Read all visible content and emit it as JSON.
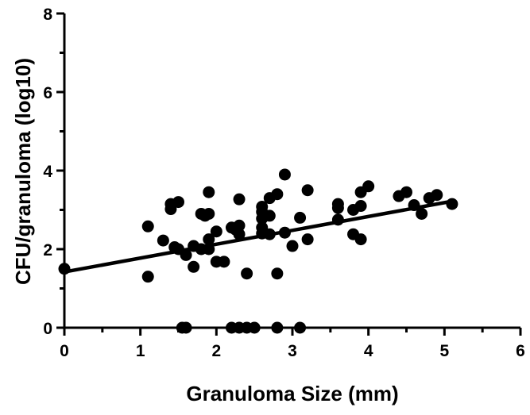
{
  "chart_data": {
    "type": "scatter",
    "xlabel": "Granuloma Size (mm)",
    "ylabel": "CFU/granuloma (log10)",
    "xlim": [
      0,
      6
    ],
    "ylim": [
      0,
      8
    ],
    "xticks": [
      0,
      1,
      2,
      3,
      4,
      5,
      6
    ],
    "yticks": [
      0,
      2,
      4,
      6,
      8
    ],
    "grid": false,
    "legend": "none",
    "points": [
      [
        0.0,
        1.5
      ],
      [
        1.1,
        2.58
      ],
      [
        1.1,
        1.3
      ],
      [
        1.3,
        2.22
      ],
      [
        1.4,
        3.15
      ],
      [
        1.4,
        3.02
      ],
      [
        1.45,
        2.05
      ],
      [
        1.5,
        3.2
      ],
      [
        1.5,
        2.0
      ],
      [
        1.55,
        0.0
      ],
      [
        1.6,
        1.85
      ],
      [
        1.6,
        0.0
      ],
      [
        1.7,
        2.08
      ],
      [
        1.7,
        1.55
      ],
      [
        1.8,
        2.9
      ],
      [
        1.8,
        2.0
      ],
      [
        1.85,
        2.85
      ],
      [
        1.9,
        3.45
      ],
      [
        1.9,
        2.9
      ],
      [
        1.9,
        2.25
      ],
      [
        1.9,
        2.0
      ],
      [
        2.0,
        2.45
      ],
      [
        2.0,
        1.68
      ],
      [
        2.1,
        1.68
      ],
      [
        2.2,
        2.55
      ],
      [
        2.2,
        0.0
      ],
      [
        2.25,
        2.5
      ],
      [
        2.3,
        3.27
      ],
      [
        2.3,
        2.6
      ],
      [
        2.3,
        2.38
      ],
      [
        2.3,
        0.0
      ],
      [
        2.4,
        1.38
      ],
      [
        2.4,
        0.0
      ],
      [
        2.5,
        0.0
      ],
      [
        2.6,
        3.08
      ],
      [
        2.6,
        2.95
      ],
      [
        2.6,
        2.78
      ],
      [
        2.6,
        2.55
      ],
      [
        2.6,
        2.4
      ],
      [
        2.7,
        3.3
      ],
      [
        2.7,
        2.85
      ],
      [
        2.7,
        2.38
      ],
      [
        2.8,
        3.4
      ],
      [
        2.8,
        1.38
      ],
      [
        2.8,
        0.0
      ],
      [
        2.9,
        3.9
      ],
      [
        2.9,
        2.42
      ],
      [
        3.0,
        2.08
      ],
      [
        3.1,
        2.8
      ],
      [
        3.1,
        0.0
      ],
      [
        3.2,
        3.5
      ],
      [
        3.2,
        2.25
      ],
      [
        3.6,
        3.15
      ],
      [
        3.6,
        3.05
      ],
      [
        3.6,
        2.75
      ],
      [
        3.8,
        3.0
      ],
      [
        3.8,
        2.38
      ],
      [
        3.9,
        3.45
      ],
      [
        3.9,
        3.1
      ],
      [
        3.9,
        2.25
      ],
      [
        4.0,
        3.6
      ],
      [
        4.4,
        3.35
      ],
      [
        4.5,
        3.45
      ],
      [
        4.6,
        3.12
      ],
      [
        4.7,
        2.9
      ],
      [
        4.8,
        3.3
      ],
      [
        4.9,
        3.38
      ],
      [
        5.1,
        3.15
      ]
    ],
    "fit_line": {
      "x": [
        0,
        5.1
      ],
      "y": [
        1.42,
        3.22
      ]
    }
  }
}
